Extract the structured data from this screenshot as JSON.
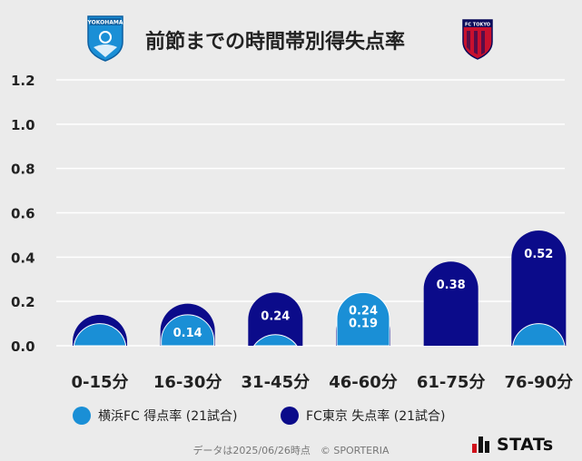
{
  "title": "前節までの時間帯別得失点率",
  "colors": {
    "home": "#1a8fd6",
    "away": "#0b0b8a",
    "grid": "#ffffff",
    "text": "#222222"
  },
  "teams": {
    "home": {
      "name": "横浜FC",
      "logo_label": "YOKOHAMA",
      "logo_icon": "yokohama-fc-crest-icon"
    },
    "away": {
      "name": "FC東京",
      "logo_label": "FC TOKYO",
      "logo_icon": "fc-tokyo-crest-icon"
    }
  },
  "legend": {
    "home": "横浜FC 得点率 (21試合)",
    "away": "FC東京 失点率 (21試合)"
  },
  "footer": {
    "note": "データは2025/06/26時点　© SPORTERIA",
    "brand": "STATs"
  },
  "chart_data": {
    "type": "bar",
    "title": "前節までの時間帯別得失点率",
    "categories": [
      "0-15分",
      "16-30分",
      "31-45分",
      "46-60分",
      "61-75分",
      "76-90分"
    ],
    "series": [
      {
        "name": "横浜FC 得点率 (21試合)",
        "values": [
          0.1,
          0.14,
          0.05,
          0.24,
          0.0,
          0.1
        ],
        "labels": [
          "",
          "0.14",
          "",
          "0.24",
          "",
          ""
        ]
      },
      {
        "name": "FC東京 失点率 (21試合)",
        "values": [
          0.14,
          0.19,
          0.24,
          0.19,
          0.38,
          0.52
        ],
        "labels": [
          "",
          "",
          "0.24",
          "0.19",
          "0.38",
          "0.52"
        ]
      }
    ],
    "ylim": [
      0,
      1.2
    ],
    "yticks": [
      "0.0",
      "0.2",
      "0.4",
      "0.6",
      "0.8",
      "1.0",
      "1.2"
    ],
    "xlabel": "",
    "ylabel": "",
    "grid": true,
    "legend": "bottom"
  }
}
